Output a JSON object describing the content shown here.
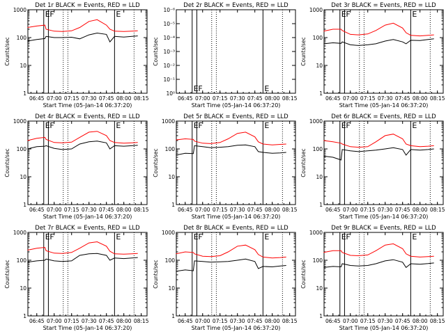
{
  "window": {
    "background": "#ffffff",
    "axis_color": "#000000",
    "events_color": "#000000",
    "lld_color": "#ff0000"
  },
  "shared": {
    "xlabel": "Start Time (05-Jan-14 06:37:20)",
    "ylabel": "Counts/sec",
    "xticks": [
      "06:45",
      "07:00",
      "07:15",
      "07:30",
      "07:45",
      "08:00",
      "08:15"
    ],
    "log_yticks": [
      "1",
      "10",
      "100",
      "1000"
    ],
    "marker_letters": [
      "E",
      "F",
      "E"
    ]
  },
  "chart_data": [
    {
      "type": "line",
      "title": "Det 1r BLACK = Events, RED = LLD",
      "yscale": "log",
      "ylim": [
        1,
        1000
      ],
      "xlim": [
        "06:37:20",
        "08:20"
      ],
      "x": [
        "06:37",
        "06:45",
        "06:52",
        "06:53",
        "07:00",
        "07:07",
        "07:15",
        "07:22",
        "07:30",
        "07:37",
        "07:45",
        "07:48",
        "07:52",
        "08:00",
        "08:07",
        "08:12"
      ],
      "series": [
        {
          "name": "Events",
          "color": "#000000",
          "values": [
            75,
            85,
            92,
            110,
            100,
            100,
            103,
            90,
            125,
            145,
            130,
            70,
            110,
            105,
            110,
            115
          ]
        },
        {
          "name": "LLD",
          "color": "#ff0000",
          "values": [
            230,
            260,
            280,
            200,
            170,
            165,
            175,
            230,
            380,
            440,
            280,
            200,
            170,
            165,
            170,
            175
          ]
        }
      ],
      "markers": [
        {
          "at": "06:51",
          "label": "E"
        },
        {
          "at": "06:55",
          "label": "F"
        },
        {
          "at": "07:52",
          "label": "E"
        }
      ]
    },
    {
      "type": "line",
      "title": "Det 2r BLACK = Events, RED = LLD",
      "yscale": "log",
      "ytick_labels": [
        "10⁻⁶",
        "10⁻⁵",
        "10⁻⁴",
        "10⁻³",
        "10⁻²",
        "10⁻¹",
        "10⁰"
      ],
      "xlim": [
        "06:37:20",
        "08:20"
      ],
      "series": [],
      "markers": [
        {
          "at": "06:51",
          "label": "E"
        },
        {
          "at": "06:55",
          "label": "F"
        },
        {
          "at": "07:52",
          "label": "E"
        }
      ]
    },
    {
      "type": "line",
      "title": "Det 3r BLACK = Events, RED = LLD",
      "yscale": "log",
      "ylim": [
        1,
        1000
      ],
      "xlim": [
        "06:37:20",
        "08:20"
      ],
      "x": [
        "06:37",
        "06:45",
        "06:52",
        "06:53",
        "07:00",
        "07:07",
        "07:15",
        "07:22",
        "07:30",
        "07:37",
        "07:45",
        "07:48",
        "07:52",
        "08:00",
        "08:07",
        "08:12"
      ],
      "series": [
        {
          "name": "Events",
          "color": "#000000",
          "values": [
            60,
            65,
            62,
            70,
            55,
            52,
            55,
            60,
            75,
            85,
            70,
            60,
            80,
            78,
            85,
            90
          ]
        },
        {
          "name": "LLD",
          "color": "#ff0000",
          "values": [
            170,
            200,
            200,
            180,
            130,
            125,
            135,
            180,
            280,
            330,
            220,
            150,
            120,
            115,
            120,
            125
          ]
        }
      ],
      "markers": [
        {
          "at": "06:51",
          "label": "E"
        },
        {
          "at": "06:55",
          "label": "F"
        },
        {
          "at": "07:52",
          "label": "E"
        }
      ]
    },
    {
      "type": "line",
      "title": "Det 4r BLACK = Events, RED = LLD",
      "yscale": "log",
      "ylim": [
        1,
        1000
      ],
      "xlim": [
        "06:37:20",
        "08:20"
      ],
      "x": [
        "06:37",
        "06:45",
        "06:52",
        "06:53",
        "07:00",
        "07:07",
        "07:15",
        "07:22",
        "07:30",
        "07:37",
        "07:45",
        "07:48",
        "07:52",
        "08:00",
        "08:07",
        "08:12"
      ],
      "series": [
        {
          "name": "Events",
          "color": "#000000",
          "values": [
            100,
            120,
            125,
            130,
            105,
            95,
            100,
            150,
            180,
            190,
            165,
            100,
            130,
            125,
            130,
            135
          ]
        },
        {
          "name": "LLD",
          "color": "#ff0000",
          "values": [
            200,
            240,
            260,
            220,
            170,
            165,
            175,
            260,
            400,
            430,
            300,
            200,
            170,
            160,
            165,
            170
          ]
        }
      ],
      "markers": [
        {
          "at": "06:51",
          "label": "E"
        },
        {
          "at": "06:55",
          "label": "F"
        },
        {
          "at": "07:52",
          "label": "E"
        }
      ]
    },
    {
      "type": "line",
      "title": "Det 5r BLACK = Events, RED = LLD",
      "yscale": "log",
      "ylim": [
        1,
        1000
      ],
      "xlim": [
        "06:37:20",
        "08:20"
      ],
      "x": [
        "06:37",
        "06:45",
        "06:52",
        "06:53",
        "07:00",
        "07:07",
        "07:15",
        "07:22",
        "07:30",
        "07:37",
        "07:45",
        "07:48",
        "07:52",
        "08:00",
        "08:07",
        "08:12"
      ],
      "series": [
        {
          "name": "Events",
          "color": "#000000",
          "values": [
            60,
            70,
            68,
            130,
            120,
            110,
            115,
            120,
            135,
            140,
            120,
            80,
            75,
            70,
            72,
            75
          ]
        },
        {
          "name": "LLD",
          "color": "#ff0000",
          "values": [
            210,
            230,
            220,
            190,
            160,
            155,
            170,
            230,
            360,
            400,
            270,
            180,
            150,
            140,
            145,
            150
          ]
        }
      ],
      "markers": [
        {
          "at": "06:51",
          "label": "E"
        },
        {
          "at": "06:55",
          "label": "F"
        },
        {
          "at": "07:52",
          "label": "E"
        }
      ]
    },
    {
      "type": "line",
      "title": "Det 6r BLACK = Events, RED = LLD",
      "yscale": "log",
      "ylim": [
        1,
        1000
      ],
      "xlim": [
        "06:37:20",
        "08:20"
      ],
      "x": [
        "06:37",
        "06:45",
        "06:52",
        "06:53",
        "07:00",
        "07:07",
        "07:15",
        "07:22",
        "07:30",
        "07:37",
        "07:45",
        "07:48",
        "07:52",
        "08:00",
        "08:07",
        "08:12"
      ],
      "series": [
        {
          "name": "Events",
          "color": "#000000",
          "values": [
            55,
            50,
            40,
            95,
            85,
            80,
            85,
            90,
            100,
            110,
            95,
            60,
            95,
            90,
            95,
            100
          ]
        },
        {
          "name": "LLD",
          "color": "#ff0000",
          "values": [
            200,
            180,
            160,
            150,
            120,
            115,
            120,
            180,
            300,
            340,
            230,
            150,
            130,
            120,
            125,
            130
          ]
        }
      ],
      "markers": [
        {
          "at": "06:51",
          "label": "E"
        },
        {
          "at": "06:55",
          "label": "F"
        },
        {
          "at": "07:52",
          "label": "E"
        }
      ]
    },
    {
      "type": "line",
      "title": "Det 7r BLACK = Events, RED = LLD",
      "yscale": "log",
      "ylim": [
        1,
        1000
      ],
      "xlim": [
        "06:37:20",
        "08:20"
      ],
      "x": [
        "06:37",
        "06:45",
        "06:52",
        "06:53",
        "07:00",
        "07:07",
        "07:15",
        "07:22",
        "07:30",
        "07:37",
        "07:45",
        "07:48",
        "07:52",
        "08:00",
        "08:07",
        "08:12"
      ],
      "series": [
        {
          "name": "Events",
          "color": "#000000",
          "values": [
            85,
            95,
            100,
            110,
            95,
            90,
            95,
            150,
            170,
            175,
            150,
            100,
            120,
            115,
            120,
            125
          ]
        },
        {
          "name": "LLD",
          "color": "#ff0000",
          "values": [
            230,
            270,
            290,
            220,
            180,
            175,
            190,
            270,
            420,
            460,
            320,
            210,
            170,
            165,
            170,
            175
          ]
        }
      ],
      "markers": [
        {
          "at": "06:51",
          "label": "E"
        },
        {
          "at": "06:55",
          "label": "F"
        },
        {
          "at": "07:52",
          "label": "E"
        }
      ]
    },
    {
      "type": "line",
      "title": "Det 8r BLACK = Events, RED = LLD",
      "yscale": "log",
      "ylim": [
        1,
        1000
      ],
      "xlim": [
        "06:37:20",
        "08:20"
      ],
      "x": [
        "06:37",
        "06:45",
        "06:52",
        "06:53",
        "07:00",
        "07:07",
        "07:15",
        "07:22",
        "07:30",
        "07:37",
        "07:45",
        "07:48",
        "07:52",
        "08:00",
        "08:07",
        "08:12"
      ],
      "series": [
        {
          "name": "Events",
          "color": "#000000",
          "values": [
            40,
            45,
            42,
            95,
            90,
            85,
            88,
            90,
            100,
            110,
            90,
            50,
            60,
            58,
            62,
            65
          ]
        },
        {
          "name": "LLD",
          "color": "#ff0000",
          "values": [
            170,
            200,
            190,
            170,
            140,
            135,
            145,
            200,
            320,
            350,
            240,
            160,
            130,
            120,
            125,
            130
          ]
        }
      ],
      "markers": [
        {
          "at": "06:51",
          "label": "E"
        },
        {
          "at": "06:55",
          "label": "F"
        },
        {
          "at": "07:52",
          "label": "E"
        }
      ]
    },
    {
      "type": "line",
      "title": "Det 9r BLACK = Events, RED = LLD",
      "yscale": "log",
      "ylim": [
        1,
        1000
      ],
      "xlim": [
        "06:37:20",
        "08:20"
      ],
      "x": [
        "06:37",
        "06:45",
        "06:52",
        "06:53",
        "07:00",
        "07:07",
        "07:15",
        "07:22",
        "07:30",
        "07:37",
        "07:45",
        "07:48",
        "07:52",
        "08:00",
        "08:07",
        "08:12"
      ],
      "series": [
        {
          "name": "Events",
          "color": "#000000",
          "values": [
            55,
            60,
            58,
            75,
            65,
            62,
            65,
            75,
            95,
            105,
            85,
            55,
            75,
            72,
            76,
            80
          ]
        },
        {
          "name": "LLD",
          "color": "#ff0000",
          "values": [
            190,
            220,
            220,
            190,
            150,
            145,
            155,
            220,
            350,
            390,
            260,
            170,
            140,
            130,
            135,
            140
          ]
        }
      ],
      "markers": [
        {
          "at": "06:51",
          "label": "E"
        },
        {
          "at": "06:55",
          "label": "F"
        },
        {
          "at": "07:52",
          "label": "E"
        }
      ]
    }
  ]
}
